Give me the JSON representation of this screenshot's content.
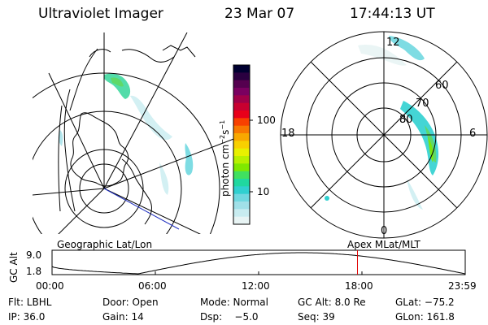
{
  "header": {
    "instrument": "Ultraviolet Imager",
    "date": "23 Mar 07",
    "time": "17:44:13 UT"
  },
  "colorbar": {
    "unit_label": "photon cm",
    "unit_exp1": "−2",
    "unit_mid": "s",
    "unit_exp2": "−1",
    "ticks": [
      "100",
      "10"
    ],
    "colors": [
      "#000030",
      "#2a0040",
      "#55004f",
      "#7a0060",
      "#a00048",
      "#c80030",
      "#e8001a",
      "#f84000",
      "#f87800",
      "#f8a800",
      "#f8d000",
      "#e8f000",
      "#b8f000",
      "#80e800",
      "#40e060",
      "#20d8a0",
      "#30d0d0",
      "#70d8e0",
      "#a0e0e8",
      "#c8ecf0",
      "#e8f4f4"
    ]
  },
  "geographic": {
    "label": "Geographic Lat/Lon"
  },
  "apex": {
    "label": "Apex MLat/MLT",
    "mlt_labels": {
      "top": "12",
      "left": "18",
      "right": "6",
      "bottom": "0"
    },
    "lat_labels": [
      "60",
      "70",
      "80"
    ]
  },
  "altitude_plot": {
    "axis_label": "GC Alt",
    "y_ticks": [
      "9.0",
      "1.8"
    ],
    "x_ticks": [
      "00:00",
      "06:00",
      "12:00",
      "18:00",
      "23:59"
    ],
    "current_time_hours": 17.74,
    "marker_color": "#e00000"
  },
  "status": {
    "filter": "Flt: LBHL",
    "door": "Door: Open",
    "mode": "Mode: Normal",
    "gc_alt": "GC Alt: 8.0 Re",
    "glat": "GLat: −75.2",
    "ip": "IP: 36.0",
    "gain": "Gain: 14",
    "dsp_label": "Dsp:",
    "dsp_value": "−5.0",
    "seq": "Seq: 39",
    "glon": "GLon: 161.8"
  }
}
